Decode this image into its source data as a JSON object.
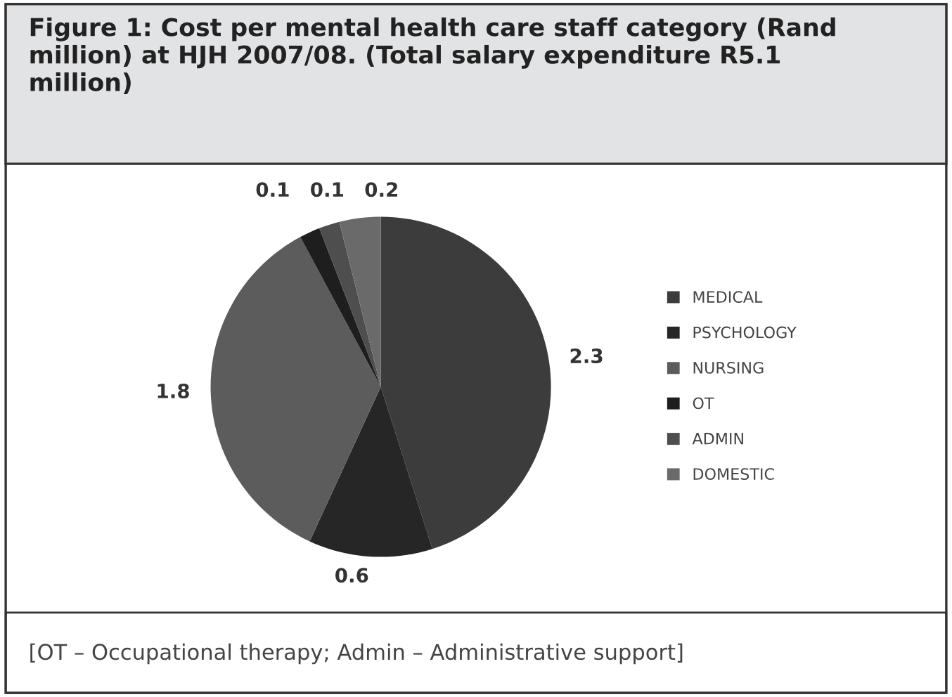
{
  "chart_data": {
    "type": "pie",
    "title": "Figure 1: Cost per mental health care staff category (Rand million) at HJH 2007/08. (Total salary expenditure R5.1 million)",
    "categories": [
      "MEDICAL",
      "PSYCHOLOGY",
      "NURSING",
      "OT",
      "ADMIN",
      "DOMESTIC"
    ],
    "values": [
      2.3,
      0.6,
      1.8,
      0.1,
      0.1,
      0.2
    ],
    "colors": [
      "#3c3c3c",
      "#262626",
      "#5c5c5c",
      "#1e1e1e",
      "#4e4e4e",
      "#6a6a6a"
    ],
    "data_labels": true,
    "legend": "right",
    "annotations": [
      "[OT – Occupational therapy; Admin – Administrative support]"
    ]
  }
}
